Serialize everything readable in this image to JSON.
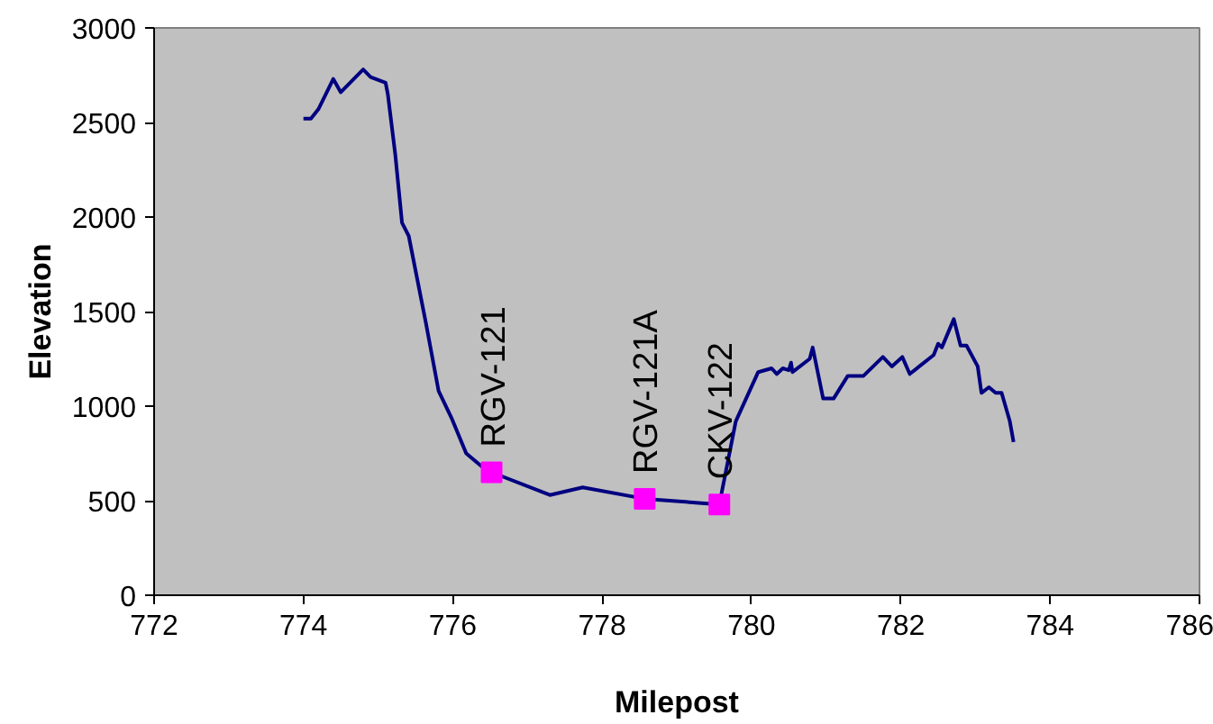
{
  "chart_data": {
    "type": "line",
    "xlabel": "Milepost",
    "ylabel": "Elevation",
    "xlim": [
      772,
      786
    ],
    "ylim": [
      0,
      3000
    ],
    "xticks": [
      772,
      774,
      776,
      778,
      780,
      782,
      784,
      786
    ],
    "yticks": [
      0,
      500,
      1000,
      1500,
      2000,
      2500,
      3000
    ],
    "grid": false,
    "series": [
      {
        "color": "#000080",
        "marker": "none",
        "x": [
          774.0,
          774.1,
          774.2,
          774.4,
          774.5,
          774.8,
          774.9,
          775.1,
          775.13,
          775.23,
          775.32,
          775.41,
          775.64,
          775.81,
          775.98,
          776.18,
          776.42,
          776.52,
          777.3,
          777.74,
          778.57,
          779.57,
          779.79,
          780.09,
          780.27,
          780.34,
          780.42,
          780.5,
          780.53,
          780.55,
          780.78,
          780.82,
          780.96,
          781.1,
          781.29,
          781.5,
          781.76,
          781.88,
          782.02,
          782.12,
          782.44,
          782.5,
          782.55,
          782.71,
          782.8,
          782.88,
          783.03,
          783.08,
          783.18,
          783.27,
          783.35,
          783.46,
          783.51
        ],
        "values": [
          2520,
          2520,
          2570,
          2730,
          2660,
          2780,
          2740,
          2710,
          2650,
          2330,
          1970,
          1900,
          1440,
          1080,
          940,
          750,
          670,
          650,
          530,
          570,
          510,
          480,
          920,
          1180,
          1200,
          1170,
          1200,
          1190,
          1230,
          1180,
          1250,
          1310,
          1040,
          1040,
          1160,
          1160,
          1260,
          1210,
          1260,
          1170,
          1270,
          1330,
          1310,
          1460,
          1320,
          1320,
          1210,
          1070,
          1100,
          1070,
          1070,
          920,
          810
        ]
      },
      {
        "type": "scatter",
        "color": "#ff00ff",
        "marker": "square",
        "x": [
          776.52,
          778.57,
          779.57
        ],
        "values": [
          650,
          510,
          480
        ]
      }
    ],
    "annotations": [
      {
        "text": "RGV-121",
        "x": 776.52,
        "y": 650
      },
      {
        "text": "RGV-121A",
        "x": 778.57,
        "y": 510
      },
      {
        "text": "CKV-122",
        "x": 779.57,
        "y": 480
      }
    ]
  }
}
